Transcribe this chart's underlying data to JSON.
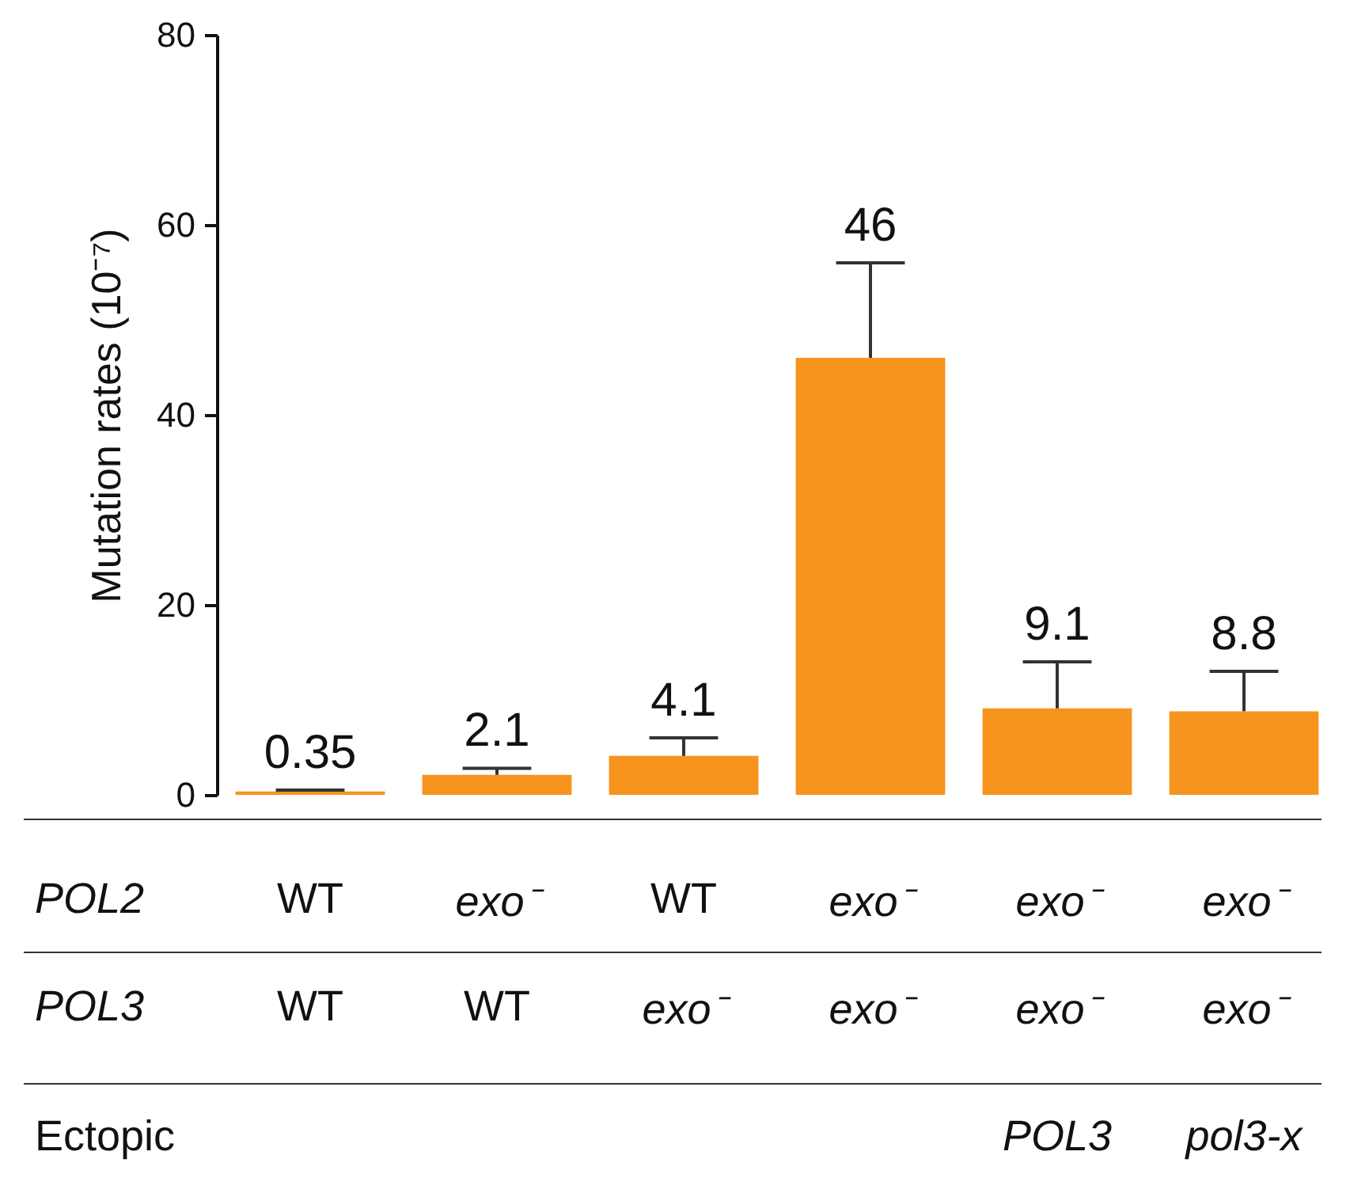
{
  "chart_data": {
    "type": "bar",
    "ylabel": "Mutation rates  (10⁻⁷)",
    "categories": [
      null,
      null,
      null,
      null,
      null,
      null
    ],
    "values": [
      0.35,
      2.1,
      4.1,
      46,
      9.1,
      8.8
    ],
    "errors": [
      [
        0.35,
        0.5
      ],
      [
        2.1,
        2.8
      ],
      [
        4.1,
        6
      ],
      [
        46,
        56
      ],
      [
        9.1,
        14
      ],
      [
        8.8,
        13
      ]
    ],
    "color": "#f7941d",
    "data_labels": true,
    "ylim": [
      0,
      80
    ],
    "yticks": [
      0,
      20,
      40,
      60,
      80
    ],
    "annotations": [
      "POL2",
      "WT",
      "exo⁻",
      "WT",
      "exo⁻",
      "exo⁻",
      "exo⁻",
      "POL3",
      "WT",
      "WT",
      "exo⁻",
      "exo⁻",
      "exo⁻",
      "exo⁻",
      "Ectopic",
      "POL3",
      "pol3-x"
    ]
  }
}
